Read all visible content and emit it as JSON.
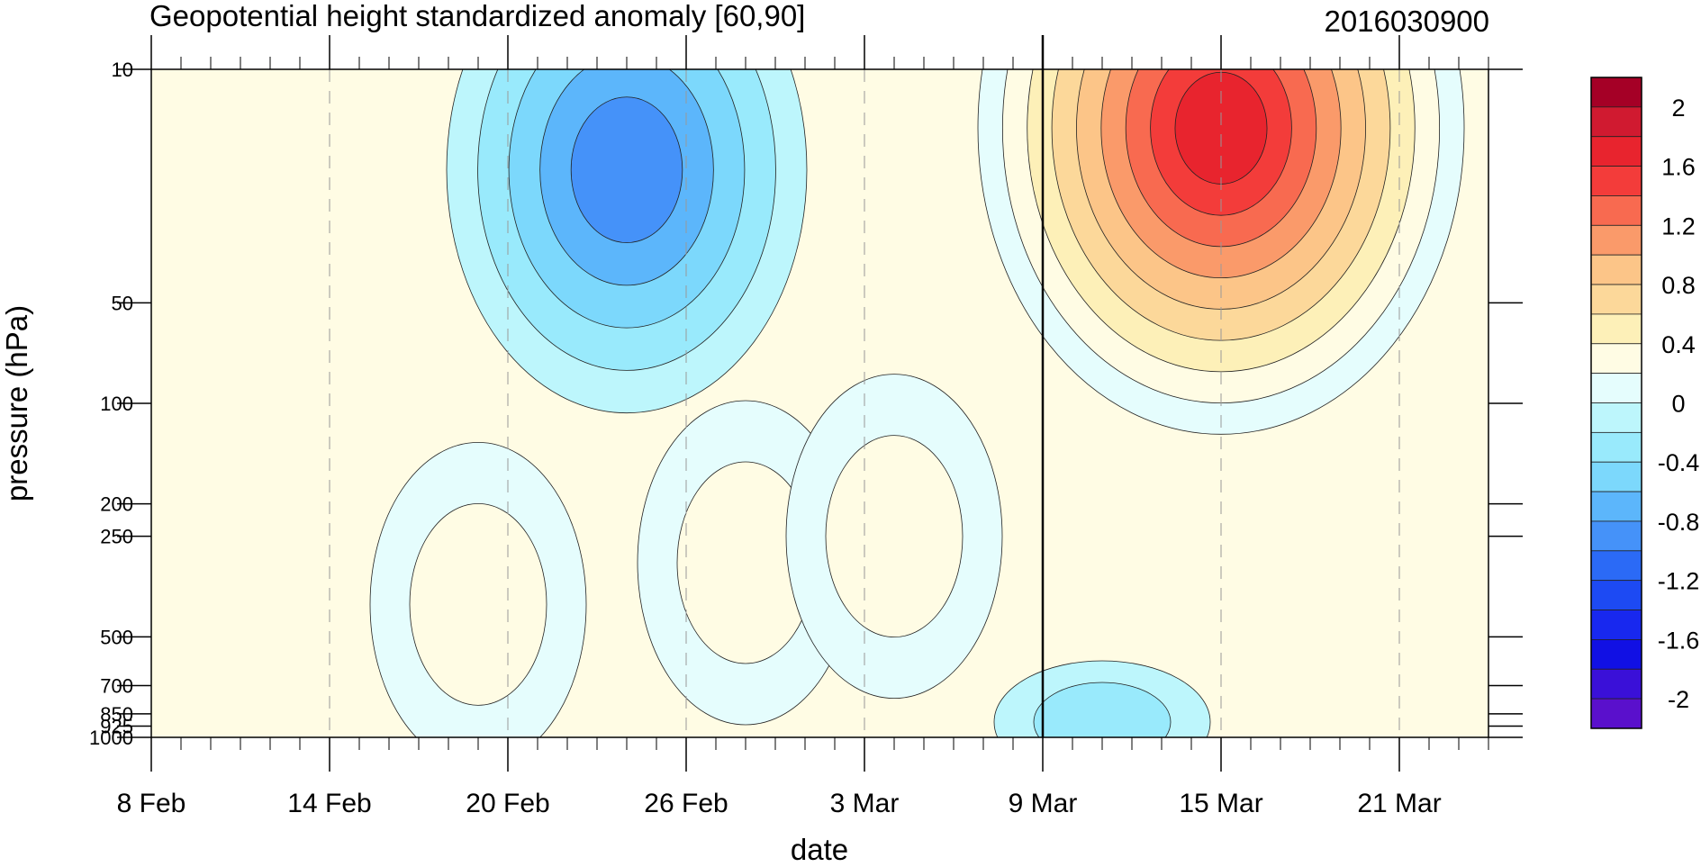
{
  "chart_data": {
    "type": "heatmap",
    "title": "Geopotential height standardized anomaly [60,90]",
    "date_label": "2016030900",
    "xlabel": "date",
    "ylabel": "pressure (hPa)",
    "x_ticks": [
      {
        "label": "8 Feb",
        "day": 0
      },
      {
        "label": "14 Feb",
        "day": 6
      },
      {
        "label": "20 Feb",
        "day": 12
      },
      {
        "label": "26 Feb",
        "day": 18
      },
      {
        "label": "3 Mar",
        "day": 24
      },
      {
        "label": "9 Mar",
        "day": 30
      },
      {
        "label": "15 Mar",
        "day": 36
      },
      {
        "label": "21 Mar",
        "day": 42
      }
    ],
    "x_range_days": [
      0,
      45
    ],
    "y_ticks": [
      10,
      50,
      100,
      200,
      250,
      500,
      700,
      850,
      925,
      1000
    ],
    "y_tick_labels": [
      "10",
      "50",
      "100",
      "200",
      "250",
      "500",
      "700",
      "850",
      "925",
      "1000"
    ],
    "y_scale": "log, inverted (10 hPa at top)",
    "y_range": [
      10,
      1000
    ],
    "analysis_marker_day": 30,
    "colorbar": {
      "labels": [
        "2",
        "1.6",
        "1.2",
        "0.8",
        "0.4",
        "0",
        "-0.4",
        "-0.8",
        "-1.2",
        "-1.6",
        "-2"
      ],
      "levels": [
        2.2,
        2.0,
        1.8,
        1.6,
        1.4,
        1.2,
        1.0,
        0.8,
        0.6,
        0.4,
        0.2,
        0.0,
        -0.2,
        -0.4,
        -0.6,
        -0.8,
        -1.0,
        -1.2,
        -1.4,
        -1.6,
        -1.8,
        -2.0,
        -2.2
      ],
      "colors": [
        "#a50026",
        "#d01a30",
        "#e8242e",
        "#f33c3a",
        "#f86a50",
        "#fa9a6a",
        "#fcc588",
        "#fcd89a",
        "#fdf0b8",
        "#fffce4",
        "#e5fdfd",
        "#bdf6fc",
        "#99eafc",
        "#7cd8fc",
        "#5cb6fb",
        "#4592f9",
        "#2b6af6",
        "#1d4af3",
        "#1828ef",
        "#1110e4",
        "#3a10d8",
        "#5a10cc"
      ]
    },
    "anomaly_zones": [
      {
        "name": "stratospheric-warm-anomaly",
        "center_day": 36,
        "center_hPa": 15,
        "value": 1.7
      },
      {
        "name": "stratospheric-cold-anomaly",
        "center_day": 16,
        "center_hPa": 20,
        "value": -0.9
      },
      {
        "name": "lower-warm-anomaly-early-feb",
        "center_day": 11,
        "center_hPa": 400,
        "value": 0.45
      },
      {
        "name": "lower-warm-anomaly-late-feb",
        "center_day": 20,
        "center_hPa": 300,
        "value": 0.45
      },
      {
        "name": "lower-warm-anomaly-early-mar",
        "center_day": 25,
        "center_hPa": 250,
        "value": 0.45
      },
      {
        "name": "surface-cold-anomaly",
        "center_day": 32,
        "center_hPa": 900,
        "value": -0.45
      }
    ]
  }
}
